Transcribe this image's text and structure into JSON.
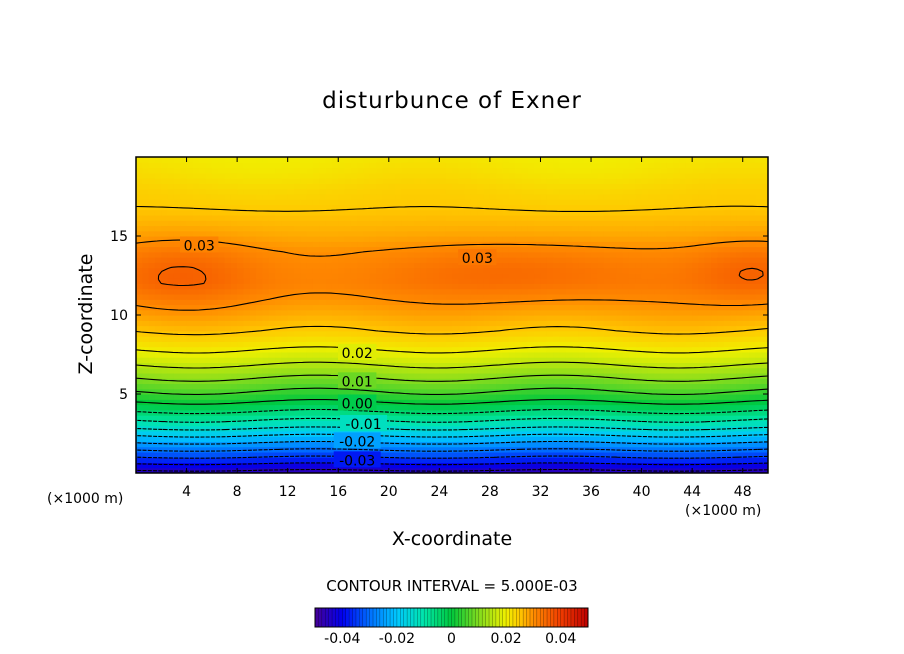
{
  "chart_data": {
    "type": "heatmap",
    "title": "disturbunce of Exner",
    "xlabel": "X-coordinate",
    "ylabel": "Z-coordinate",
    "x_unit": "(×1000 m)",
    "z_unit": "(×1000 m)",
    "xlim": [
      0,
      50
    ],
    "ylim": [
      0,
      20
    ],
    "x_ticks": [
      4,
      8,
      12,
      16,
      20,
      24,
      28,
      32,
      36,
      40,
      44,
      48
    ],
    "y_ticks": [
      5,
      10,
      15
    ],
    "contour_interval_text": "CONTOUR INTERVAL = 5.000E-03",
    "contour_labels": [
      {
        "text": "0.03",
        "x": 5,
        "z": 14.4
      },
      {
        "text": "0.03",
        "x": 27,
        "z": 13.6
      },
      {
        "text": "0.02",
        "x": 17.5,
        "z": 7.6
      },
      {
        "text": "0.01",
        "x": 17.5,
        "z": 5.8
      },
      {
        "text": "0.00",
        "x": 17.5,
        "z": 4.4
      },
      {
        "text": "-0.01",
        "x": 18,
        "z": 3.1
      },
      {
        "text": "-0.02",
        "x": 17.5,
        "z": 2.0
      },
      {
        "text": "-0.03",
        "x": 17.5,
        "z": 0.8
      }
    ],
    "colorbar": {
      "range": [
        -0.05,
        0.05
      ],
      "ticks": [
        "-0.04",
        "-0.02",
        "0",
        "0.02",
        "0.04"
      ]
    },
    "profile": {
      "z": [
        0,
        1,
        2,
        3,
        4,
        5,
        6,
        7,
        8,
        9,
        10,
        11,
        12,
        13,
        14,
        15,
        16,
        17,
        18,
        19,
        20
      ],
      "value": [
        -0.047,
        -0.035,
        -0.024,
        -0.013,
        -0.004,
        0.004,
        0.01,
        0.016,
        0.021,
        0.025,
        0.0275,
        0.0295,
        0.031,
        0.0305,
        0.0295,
        0.0275,
        0.026,
        0.0245,
        0.0235,
        0.022,
        0.021
      ]
    }
  }
}
